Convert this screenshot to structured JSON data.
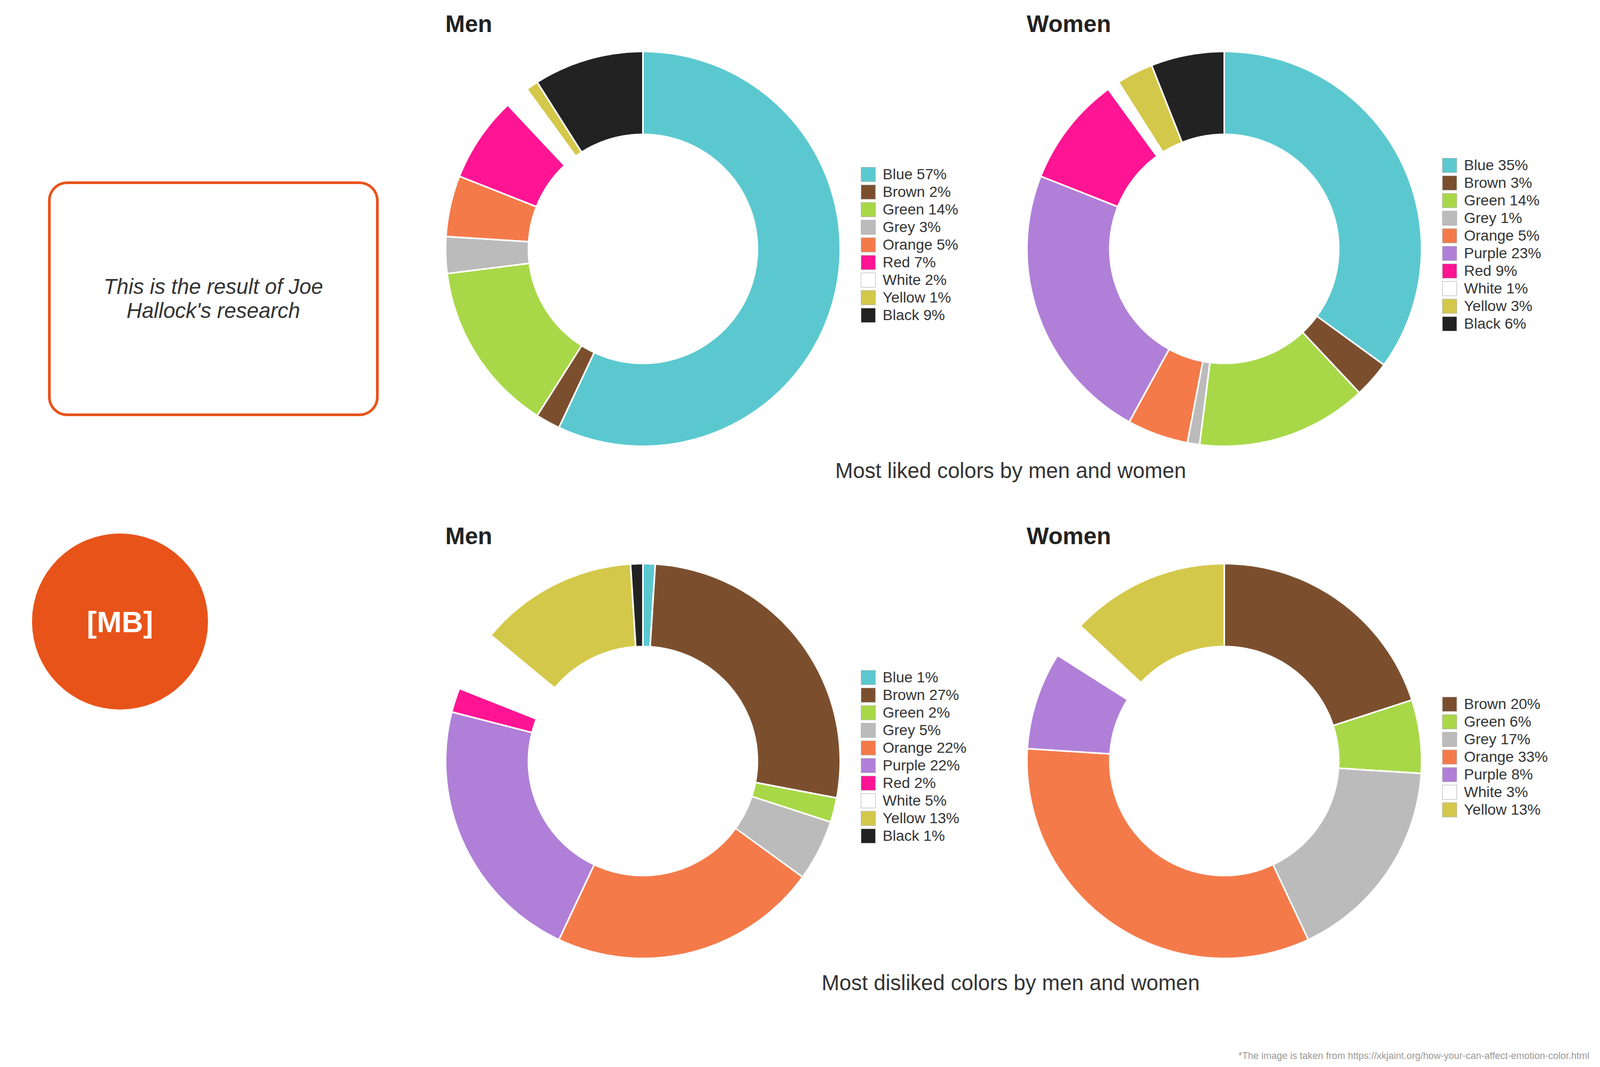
{
  "chart_data": [
    {
      "type": "donut",
      "title": "Men",
      "subtitle": "Most liked colors by men and women",
      "categories": [
        "Blue 57%",
        "Brown 2%",
        "Green 14%",
        "Grey 3%",
        "Orange 5%",
        "Red 7%",
        "White 2%",
        "Yellow 1%",
        "Black 9%"
      ],
      "values": [
        57,
        2,
        14,
        3,
        5,
        7,
        2,
        1,
        9
      ],
      "colors": [
        "#5BC8D0",
        "#7B4F2E",
        "#A8D848",
        "#BBBBBB",
        "#F47A4A",
        "#FF1493",
        "#FFFFFF",
        "#D4C84A",
        "#222222"
      ],
      "legend": "right",
      "annotations": [
        "This is the result of Joe\nHallock's research",
        "[MB]",
        "*The image is taken from https://xkjaint.org/how-your-can-affect-emotion-color.html"
      ]
    },
    {
      "type": "donut",
      "title": "Women",
      "categories": [
        "Blue 35%",
        "Brown 3%",
        "Green 14%",
        "Grey 1%",
        "Orange 5%",
        "Purple 23%",
        "Red 9%",
        "White 1%",
        "Yellow 3%",
        "Black 6%"
      ],
      "values": [
        35,
        3,
        14,
        1,
        5,
        23,
        9,
        1,
        3,
        6
      ],
      "colors": [
        "#5BC8D0",
        "#7B4F2E",
        "#A8D848",
        "#BBBBBB",
        "#F47A4A",
        "#B07FD8",
        "#FF1493",
        "#FFFFFF",
        "#D4C84A",
        "#222222"
      ],
      "legend": "right"
    },
    {
      "type": "donut",
      "title": "Men",
      "subtitle": "Most disliked colors by men and women",
      "categories": [
        "Blue 1%",
        "Brown 27%",
        "Green 2%",
        "Grey 5%",
        "Orange 22%",
        "Purple 22%",
        "Red 2%",
        "White 5%",
        "Yellow 13%",
        "Black 1%"
      ],
      "values": [
        1,
        27,
        2,
        5,
        22,
        22,
        2,
        5,
        13,
        1
      ],
      "colors": [
        "#5BC8D0",
        "#7B4F2E",
        "#A8D848",
        "#BBBBBB",
        "#F47A4A",
        "#B07FD8",
        "#FF1493",
        "#FFFFFF",
        "#D4C84A",
        "#222222"
      ],
      "legend": "right"
    },
    {
      "type": "donut",
      "title": "Women",
      "categories": [
        "Brown 20%",
        "Green 6%",
        "Grey 17%",
        "Orange 33%",
        "Purple 8%",
        "White 3%",
        "Yellow 13%"
      ],
      "values": [
        20,
        6,
        17,
        33,
        8,
        3,
        13
      ],
      "colors": [
        "#7B4F2E",
        "#A8D848",
        "#BBBBBB",
        "#F47A4A",
        "#B07FD8",
        "#FFFFFF",
        "#D4C84A"
      ],
      "legend": "right"
    }
  ]
}
